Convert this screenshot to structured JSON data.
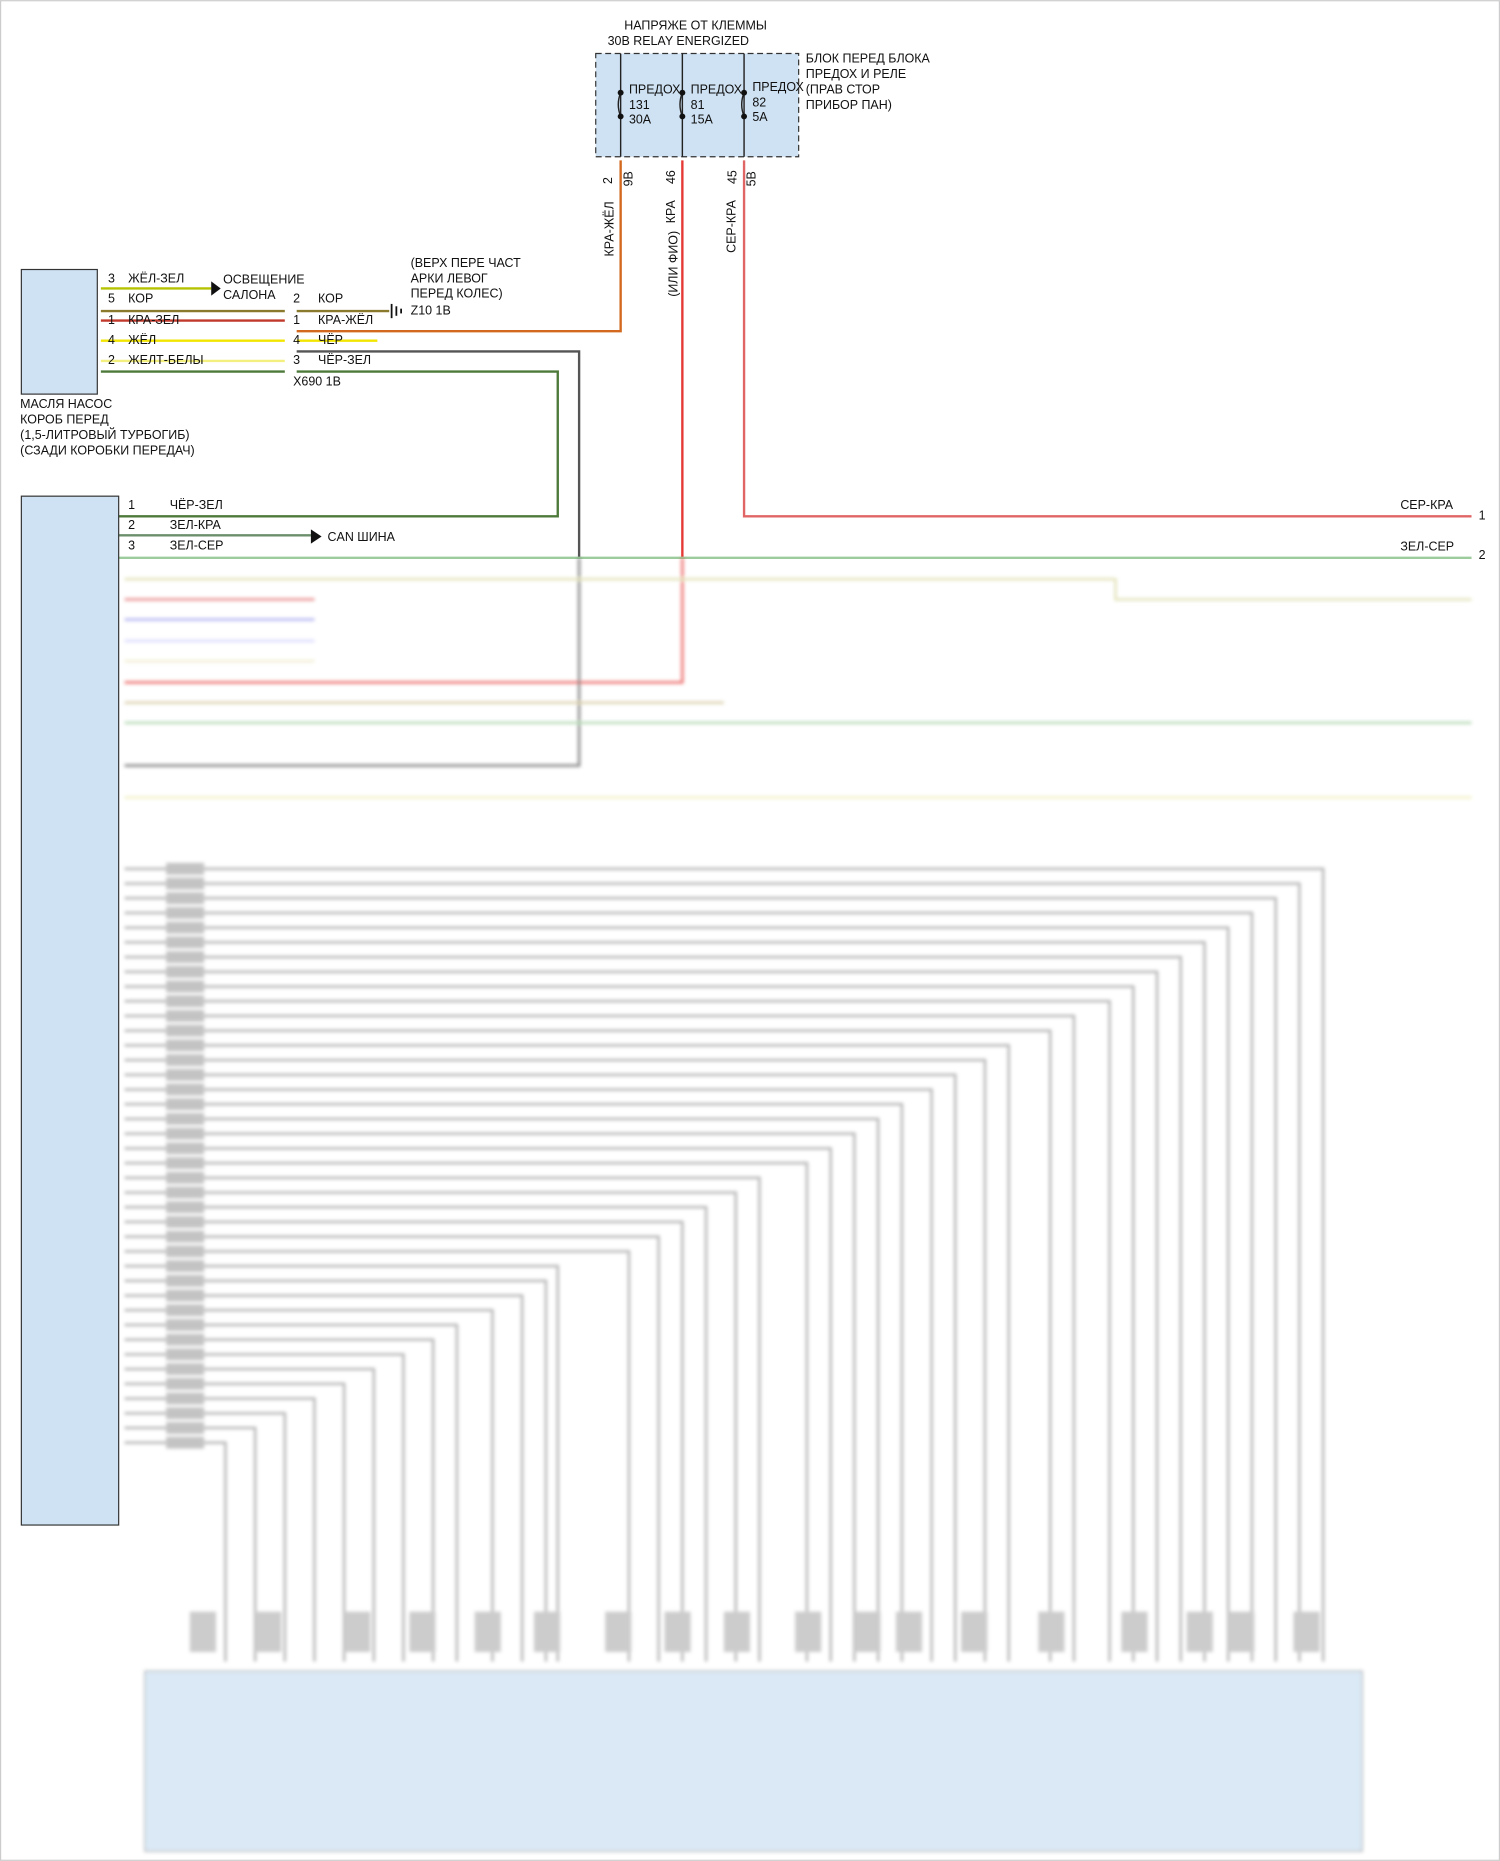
{
  "power_source": {
    "lines": [
      "НАПРЯЖЕ ОТ КЛЕММЫ",
      "30B RELAY ENERGIZED"
    ]
  },
  "fuse_block": {
    "label": [
      "БЛОК ПЕРЕД БЛОКА",
      "ПРЕДОХ И РЕЛЕ",
      "(ПРАВ СТОР",
      "ПРИБОР ПАН)"
    ],
    "fuses": [
      {
        "name": "ПРЕДОХ",
        "number": "131",
        "rating": "30A"
      },
      {
        "name": "ПРЕДОХ",
        "number": "81",
        "rating": "15A"
      },
      {
        "name": "ПРЕДОХ",
        "number": "82",
        "rating": "5A"
      }
    ],
    "pins": [
      {
        "cavity": "2",
        "connector": "9B"
      },
      {
        "cavity": "46"
      },
      {
        "cavity": "45",
        "connector": "5B"
      }
    ]
  },
  "vertical_wires": [
    [
      "КРА-ЖЁЛ"
    ],
    [
      "КРА",
      "(ИЛИ ФИО)"
    ],
    [
      "СЕР-КРА"
    ]
  ],
  "oil_pump": {
    "label": [
      "МАСЛЯ НАСОС",
      "КОРОБ ПЕРЕД",
      "(1,5-ЛИТРОВЫЙ ТУРБОГИБ)",
      "(СЗАДИ КОРОБКИ ПЕРЕДАЧ)"
    ],
    "pins": [
      {
        "pin": "3",
        "color": "ЖЁЛ-ЗЕЛ"
      },
      {
        "pin": "5",
        "color": "КОР"
      },
      {
        "pin": "1",
        "color": "КРА-ЗЕЛ"
      },
      {
        "pin": "4",
        "color": "ЖЁЛ"
      },
      {
        "pin": "2",
        "color": "ЖЕЛТ-БЕЛЫ"
      }
    ]
  },
  "interior_light": [
    "ОСВЕЩЕНИЕ",
    "САЛОНА"
  ],
  "connector_x690": {
    "name": "X690 1B",
    "pins": [
      {
        "pin": "2",
        "color": "КОР"
      },
      {
        "pin": "1",
        "color": "КРА-ЖЁЛ"
      },
      {
        "pin": "4",
        "color": "ЧЁР"
      },
      {
        "pin": "3",
        "color": "ЧЁР-ЗЕЛ"
      }
    ]
  },
  "ground_z10": {
    "label": [
      "(ВЕРХ ПЕРЕ ЧАСТ",
      "АРКИ ЛЕВОГ",
      "ПЕРЕД КОЛЕС)"
    ],
    "name": "Z10 1B"
  },
  "module": {
    "pins": [
      {
        "pin": "1",
        "color": "ЧЁР-ЗЕЛ"
      },
      {
        "pin": "2",
        "color": "ЗЕЛ-КРА"
      },
      {
        "pin": "3",
        "color": "ЗЕЛ-СЕР"
      }
    ],
    "can_bus": "CAN ШИНА"
  },
  "right_connector": {
    "pins": [
      {
        "color": "СЕР-КРА",
        "pin": "1"
      },
      {
        "color": "ЗЕЛ-СЕР",
        "pin": "2"
      }
    ]
  }
}
